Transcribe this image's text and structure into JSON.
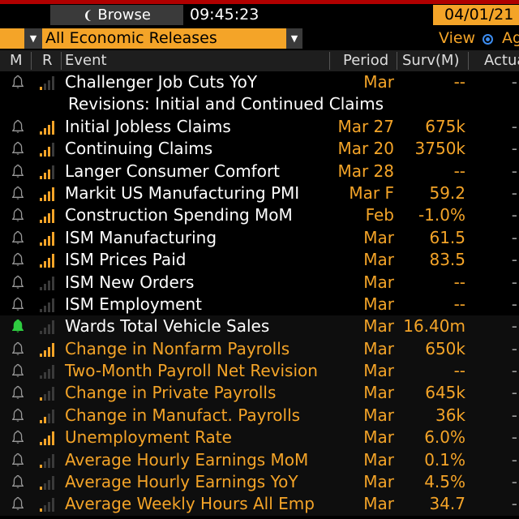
{
  "topbar": {
    "browse_label": "Browse",
    "time": "09:45:23",
    "date": "04/01/21"
  },
  "filter": {
    "value": "All Economic Releases",
    "view_label": "View",
    "ag_label": "Ag"
  },
  "columns": {
    "m": "M",
    "r": "R",
    "event": "Event",
    "period": "Period",
    "surv": "Surv(M)",
    "actual": "Actual"
  },
  "rows": [
    {
      "type": "event",
      "bell": "grey",
      "relevance": 1,
      "event": "Challenger Job Cuts YoY",
      "period": "Mar",
      "surv": "--",
      "actual": "-",
      "color": "white"
    },
    {
      "type": "subheader",
      "text": "Revisions: Initial and Continued Claims"
    },
    {
      "type": "event",
      "bell": "grey",
      "relevance": 4,
      "event": "Initial Jobless Claims",
      "period": "Mar 27",
      "surv": "675k",
      "actual": "-",
      "color": "white"
    },
    {
      "type": "event",
      "bell": "grey",
      "relevance": 3,
      "event": "Continuing Claims",
      "period": "Mar 20",
      "surv": "3750k",
      "actual": "-",
      "color": "white"
    },
    {
      "type": "event",
      "bell": "grey",
      "relevance": 3,
      "event": "Langer Consumer Comfort",
      "period": "Mar 28",
      "surv": "--",
      "actual": "-",
      "color": "white"
    },
    {
      "type": "event",
      "bell": "grey",
      "relevance": 4,
      "event": "Markit US Manufacturing PMI",
      "period": "Mar F",
      "surv": "59.2",
      "actual": "-",
      "color": "white"
    },
    {
      "type": "event",
      "bell": "grey",
      "relevance": 4,
      "event": "Construction Spending MoM",
      "period": "Feb",
      "surv": "-1.0%",
      "actual": "-",
      "color": "white"
    },
    {
      "type": "event",
      "bell": "grey",
      "relevance": 4,
      "event": "ISM Manufacturing",
      "period": "Mar",
      "surv": "61.5",
      "actual": "-",
      "color": "white"
    },
    {
      "type": "event",
      "bell": "grey",
      "relevance": 4,
      "event": "ISM Prices Paid",
      "period": "Mar",
      "surv": "83.5",
      "actual": "-",
      "color": "white"
    },
    {
      "type": "event",
      "bell": "grey",
      "relevance": 0,
      "event": "ISM New Orders",
      "period": "Mar",
      "surv": "--",
      "actual": "-",
      "color": "white"
    },
    {
      "type": "event",
      "bell": "grey",
      "relevance": 0,
      "event": "ISM Employment",
      "period": "Mar",
      "surv": "--",
      "actual": "-",
      "color": "white"
    },
    {
      "type": "event",
      "bell": "green",
      "relevance": 0,
      "event": "Wards Total Vehicle Sales",
      "period": "Mar",
      "surv": "16.40m",
      "actual": "-",
      "color": "white"
    },
    {
      "type": "event",
      "bell": "grey",
      "relevance": 4,
      "event": "Change in Nonfarm Payrolls",
      "period": "Mar",
      "surv": "650k",
      "actual": "-",
      "color": "orange"
    },
    {
      "type": "event",
      "bell": "grey",
      "relevance": 0,
      "event": "Two-Month Payroll Net Revision",
      "period": "Mar",
      "surv": "--",
      "actual": "-",
      "color": "orange"
    },
    {
      "type": "event",
      "bell": "grey",
      "relevance": 1,
      "event": "Change in Private Payrolls",
      "period": "Mar",
      "surv": "645k",
      "actual": "-",
      "color": "orange"
    },
    {
      "type": "event",
      "bell": "grey",
      "relevance": 2,
      "event": "Change in Manufact. Payrolls",
      "period": "Mar",
      "surv": "36k",
      "actual": "-",
      "color": "orange"
    },
    {
      "type": "event",
      "bell": "grey",
      "relevance": 4,
      "event": "Unemployment Rate",
      "period": "Mar",
      "surv": "6.0%",
      "actual": "-",
      "color": "orange"
    },
    {
      "type": "event",
      "bell": "grey",
      "relevance": 1,
      "event": "Average Hourly Earnings MoM",
      "period": "Mar",
      "surv": "0.1%",
      "actual": "-",
      "color": "orange"
    },
    {
      "type": "event",
      "bell": "grey",
      "relevance": 1,
      "event": "Average Hourly Earnings YoY",
      "period": "Mar",
      "surv": "4.5%",
      "actual": "-",
      "color": "orange"
    },
    {
      "type": "event",
      "bell": "grey",
      "relevance": 1,
      "event": "Average Weekly Hours All Emp",
      "period": "Mar",
      "surv": "34.7",
      "actual": "-",
      "color": "orange"
    }
  ],
  "colors": {
    "accent": "#f4a428",
    "bell_grey": "#9a9a9a",
    "bell_green": "#2ecc40",
    "bar_off": "#3a3a3a"
  }
}
